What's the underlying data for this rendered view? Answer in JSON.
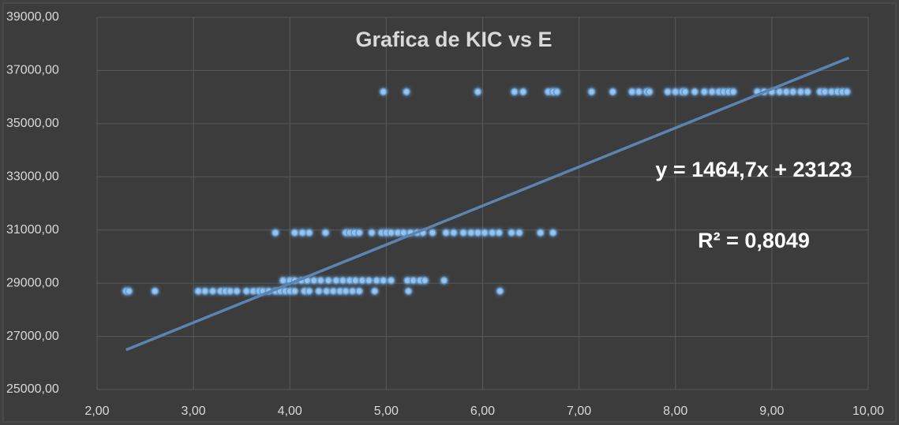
{
  "chart_data": {
    "type": "scatter",
    "title": "Grafica de KIC  vs E",
    "x": [
      4.97,
      5.21,
      5.95,
      6.33,
      6.42,
      6.68,
      6.73,
      6.77,
      7.13,
      7.35,
      7.55,
      7.62,
      7.7,
      7.73,
      7.92,
      8.0,
      8.07,
      8.1,
      8.2,
      8.3,
      8.38,
      8.45,
      8.5,
      8.55,
      8.6,
      8.85,
      8.92,
      9.0,
      9.08,
      9.15,
      9.22,
      9.3,
      9.37,
      9.5,
      9.55,
      9.62,
      9.68,
      9.73,
      9.78,
      3.85,
      4.05,
      4.13,
      4.2,
      4.37,
      4.58,
      4.62,
      4.67,
      4.72,
      4.85,
      4.95,
      5.0,
      5.05,
      5.12,
      5.18,
      5.25,
      5.32,
      5.38,
      5.48,
      5.62,
      5.7,
      5.8,
      5.88,
      5.95,
      6.02,
      6.1,
      6.17,
      6.3,
      6.38,
      6.6,
      6.73,
      3.93,
      4.0,
      4.05,
      4.12,
      4.18,
      4.25,
      4.32,
      4.4,
      4.48,
      4.55,
      4.62,
      4.68,
      4.75,
      4.82,
      4.9,
      4.97,
      5.05,
      5.22,
      5.28,
      5.35,
      5.4,
      5.6,
      2.3,
      2.33,
      2.6,
      3.05,
      3.12,
      3.2,
      3.28,
      3.33,
      3.38,
      3.45,
      3.55,
      3.62,
      3.68,
      3.72,
      3.78,
      3.85,
      3.9,
      3.95,
      4.0,
      4.05,
      4.15,
      4.2,
      4.3,
      4.38,
      4.45,
      4.52,
      4.58,
      4.65,
      4.72,
      4.88,
      5.23,
      6.18
    ],
    "values": [
      36200,
      36200,
      36200,
      36200,
      36200,
      36200,
      36200,
      36200,
      36200,
      36200,
      36200,
      36200,
      36200,
      36200,
      36200,
      36200,
      36200,
      36200,
      36200,
      36200,
      36200,
      36200,
      36200,
      36200,
      36200,
      36200,
      36200,
      36200,
      36200,
      36200,
      36200,
      36200,
      36200,
      36200,
      36200,
      36200,
      36200,
      36200,
      36200,
      30900,
      30900,
      30900,
      30900,
      30900,
      30900,
      30900,
      30900,
      30900,
      30900,
      30900,
      30900,
      30900,
      30900,
      30900,
      30900,
      30900,
      30900,
      30900,
      30900,
      30900,
      30900,
      30900,
      30900,
      30900,
      30900,
      30900,
      30900,
      30900,
      30900,
      30900,
      29100,
      29100,
      29100,
      29100,
      29100,
      29100,
      29100,
      29100,
      29100,
      29100,
      29100,
      29100,
      29100,
      29100,
      29100,
      29100,
      29100,
      29100,
      29100,
      29100,
      29100,
      29100,
      28700,
      28700,
      28700,
      28700,
      28700,
      28700,
      28700,
      28700,
      28700,
      28700,
      28700,
      28700,
      28700,
      28700,
      28700,
      28700,
      28700,
      28700,
      28700,
      28700,
      28700,
      28700,
      28700,
      28700,
      28700,
      28700,
      28700,
      28700,
      28700,
      28700,
      28700,
      28700
    ],
    "color": "#9dc3e6",
    "trendline": {
      "x": [
        2.3,
        9.8
      ],
      "values": [
        26492,
        37477
      ],
      "color": "#5b84b1"
    },
    "annotations": [
      "y = 1464,7x + 23123",
      "R² = 0,8049"
    ],
    "xlim": [
      2,
      10
    ],
    "xticks": [
      {
        "value": 2,
        "label": "2,00"
      },
      {
        "value": 3,
        "label": "3,00"
      },
      {
        "value": 4,
        "label": "4,00"
      },
      {
        "value": 5,
        "label": "5,00"
      },
      {
        "value": 6,
        "label": "6,00"
      },
      {
        "value": 7,
        "label": "7,00"
      },
      {
        "value": 8,
        "label": "8,00"
      },
      {
        "value": 9,
        "label": "9,00"
      },
      {
        "value": 10,
        "label": "10,00"
      }
    ],
    "ylim": [
      25000,
      39000
    ],
    "yticks": [
      {
        "value": 25000,
        "label": "25000,00"
      },
      {
        "value": 27000,
        "label": "27000,00"
      },
      {
        "value": 29000,
        "label": "29000,00"
      },
      {
        "value": 31000,
        "label": "31000,00"
      },
      {
        "value": 33000,
        "label": "33000,00"
      },
      {
        "value": 35000,
        "label": "35000,00"
      },
      {
        "value": 37000,
        "label": "37000,00"
      },
      {
        "value": 39000,
        "label": "39000,00"
      }
    ],
    "grid": true
  }
}
